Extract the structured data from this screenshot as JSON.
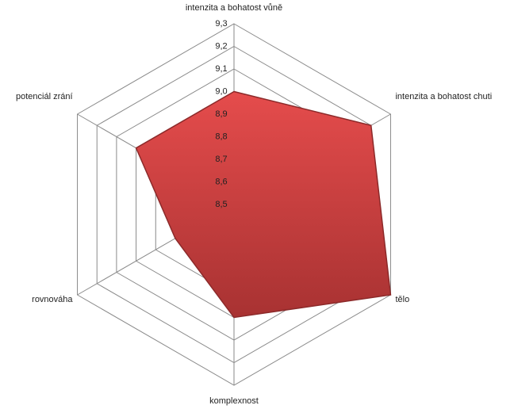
{
  "chart_data": {
    "type": "radar",
    "categories": [
      "intenzita a bohatost vůně",
      "intenzita a bohatost chuti",
      "tělo",
      "komplexnost",
      "rovnováha",
      "potenciál zrání"
    ],
    "values": [
      9.0,
      9.2,
      9.3,
      9.0,
      8.8,
      9.0
    ],
    "color": "#d64040",
    "ylim": [
      8.5,
      9.3
    ],
    "yticks": [
      {
        "value": 8.5,
        "label": "8,5"
      },
      {
        "value": 8.6,
        "label": "8,6"
      },
      {
        "value": 8.7,
        "label": "8,7"
      },
      {
        "value": 8.8,
        "label": "8,8"
      },
      {
        "value": 8.9,
        "label": "8,9"
      },
      {
        "value": 9.0,
        "label": "9,0"
      },
      {
        "value": 9.1,
        "label": "9,1"
      },
      {
        "value": 9.2,
        "label": "9,2"
      },
      {
        "value": 9.3,
        "label": "9,3"
      }
    ],
    "grid": true
  }
}
